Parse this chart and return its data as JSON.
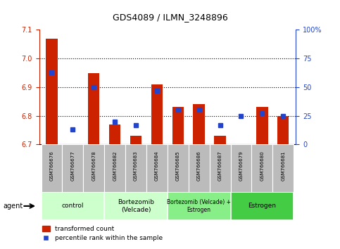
{
  "title": "GDS4089 / ILMN_3248896",
  "samples": [
    "GSM766676",
    "GSM766677",
    "GSM766678",
    "GSM766682",
    "GSM766683",
    "GSM766684",
    "GSM766685",
    "GSM766686",
    "GSM766687",
    "GSM766679",
    "GSM766680",
    "GSM766681"
  ],
  "red_values": [
    7.07,
    6.7,
    6.95,
    6.77,
    6.73,
    6.91,
    6.83,
    6.84,
    6.73,
    6.7,
    6.83,
    6.8
  ],
  "blue_values": [
    63,
    13,
    50,
    20,
    17,
    47,
    30,
    30,
    17,
    25,
    27,
    25
  ],
  "ylim_left": [
    6.7,
    7.1
  ],
  "ylim_right": [
    0,
    100
  ],
  "yticks_left": [
    6.7,
    6.8,
    6.9,
    7.0,
    7.1
  ],
  "yticks_right": [
    0,
    25,
    50,
    75,
    100
  ],
  "ytick_labels_right": [
    "0",
    "25",
    "50",
    "75",
    "100%"
  ],
  "grid_lines": [
    6.8,
    6.9,
    7.0
  ],
  "groups": [
    {
      "label": "control",
      "start": 0,
      "end": 3,
      "color": "#ccffcc"
    },
    {
      "label": "Bortezomib\n(Velcade)",
      "start": 3,
      "end": 6,
      "color": "#ccffcc"
    },
    {
      "label": "Bortezomib (Velcade) +\nEstrogen",
      "start": 6,
      "end": 9,
      "color": "#88ee88"
    },
    {
      "label": "Estrogen",
      "start": 9,
      "end": 12,
      "color": "#44cc44"
    }
  ],
  "bar_width": 0.55,
  "red_color": "#cc2200",
  "blue_color": "#2244cc",
  "tick_bg_color": "#bbbbbb",
  "base_value": 6.7,
  "legend_red": "transformed count",
  "legend_blue": "percentile rank within the sample",
  "agent_label": "agent",
  "left_axis_color": "#cc2200",
  "right_axis_color": "#2244cc"
}
